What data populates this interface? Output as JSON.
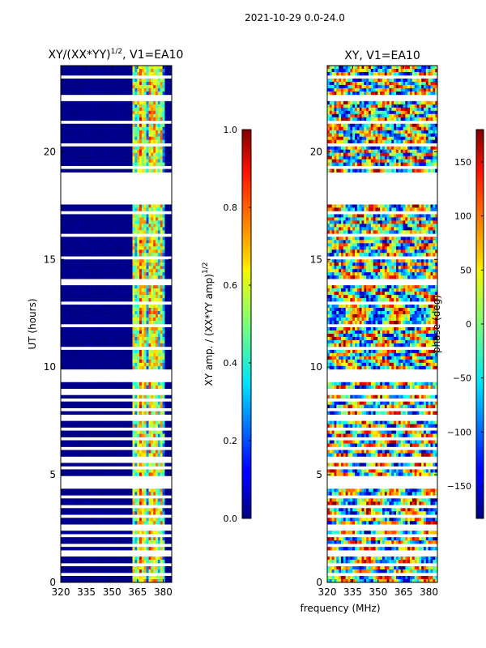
{
  "figure": {
    "suptitle": "2021-10-29 0.0-24.0",
    "shared_xlabel": "frequency (MHz)"
  },
  "chart_data": [
    {
      "type": "heatmap",
      "title_main": "XY/(XX*YY)",
      "title_sup": "1/2",
      "title_rest": ", V1=EA10",
      "xlabel": "",
      "ylabel": "UT (hours)",
      "xlim": [
        320,
        385
      ],
      "ylim": [
        0,
        24
      ],
      "xticks": [
        320,
        335,
        350,
        365,
        380
      ],
      "yticks": [
        0,
        5,
        10,
        15,
        20
      ],
      "colorbar": {
        "label_main": "XY amp. / (XX*YY amp)",
        "label_sup": "1/2",
        "range": [
          0.0,
          1.0
        ],
        "ticks": [
          "0.0",
          "0.2",
          "0.4",
          "0.6",
          "0.8",
          "1.0"
        ],
        "colormap": "jet"
      },
      "description": "Mostly low values (~0.0) below 362 MHz; bright vertical stripes 0.3-0.8 between 362 and 380 MHz; white horizontal gaps of flagged data"
    },
    {
      "type": "heatmap",
      "title_main": "XY, V1=EA10",
      "xlabel": "",
      "ylabel": "",
      "xlim": [
        320,
        385
      ],
      "ylim": [
        0,
        24
      ],
      "xticks": [
        320,
        335,
        350,
        365,
        380
      ],
      "yticks": [
        0,
        5,
        10,
        15,
        20
      ],
      "colorbar": {
        "label_main": "phase (deg)",
        "range": [
          -180,
          180
        ],
        "ticks": [
          "−150",
          "−100",
          "−50",
          "0",
          "50",
          "100",
          "150"
        ],
        "tick_values": [
          -150,
          -100,
          -50,
          0,
          50,
          100,
          150
        ],
        "colormap": "jet"
      },
      "description": "Noisy phase values spanning -180 to 180 deg; horizontal white gaps of flagged data"
    }
  ]
}
